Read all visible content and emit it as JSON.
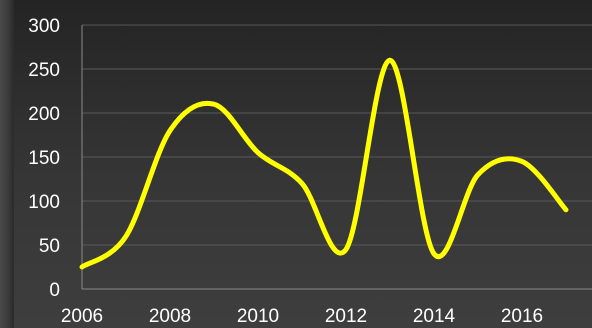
{
  "chart_data": {
    "type": "line",
    "title": "",
    "xlabel": "",
    "ylabel": "",
    "xlim": [
      2006,
      2017
    ],
    "ylim": [
      0,
      300
    ],
    "grid": true,
    "legend": "none",
    "x_ticks": [
      2006,
      2008,
      2010,
      2012,
      2014,
      2016
    ],
    "y_ticks": [
      0,
      50,
      100,
      150,
      200,
      250,
      300
    ],
    "x_tick_labels": [
      "2006",
      "2008",
      "2010",
      "2012",
      "2014",
      "2016"
    ],
    "y_tick_labels": [
      "0",
      "50",
      "100",
      "150",
      "200",
      "250",
      "300"
    ],
    "series": [
      {
        "color": "#ffff00",
        "x": [
          2006,
          2007,
          2008,
          2009,
          2010,
          2011,
          2012,
          2013,
          2014,
          2015,
          2016,
          2017
        ],
        "values": [
          25,
          60,
          180,
          210,
          155,
          120,
          45,
          260,
          40,
          130,
          145,
          90
        ]
      }
    ],
    "colors": {
      "grid": "#585858",
      "axis": "#8a8a8a",
      "text": "#ffffff"
    }
  }
}
